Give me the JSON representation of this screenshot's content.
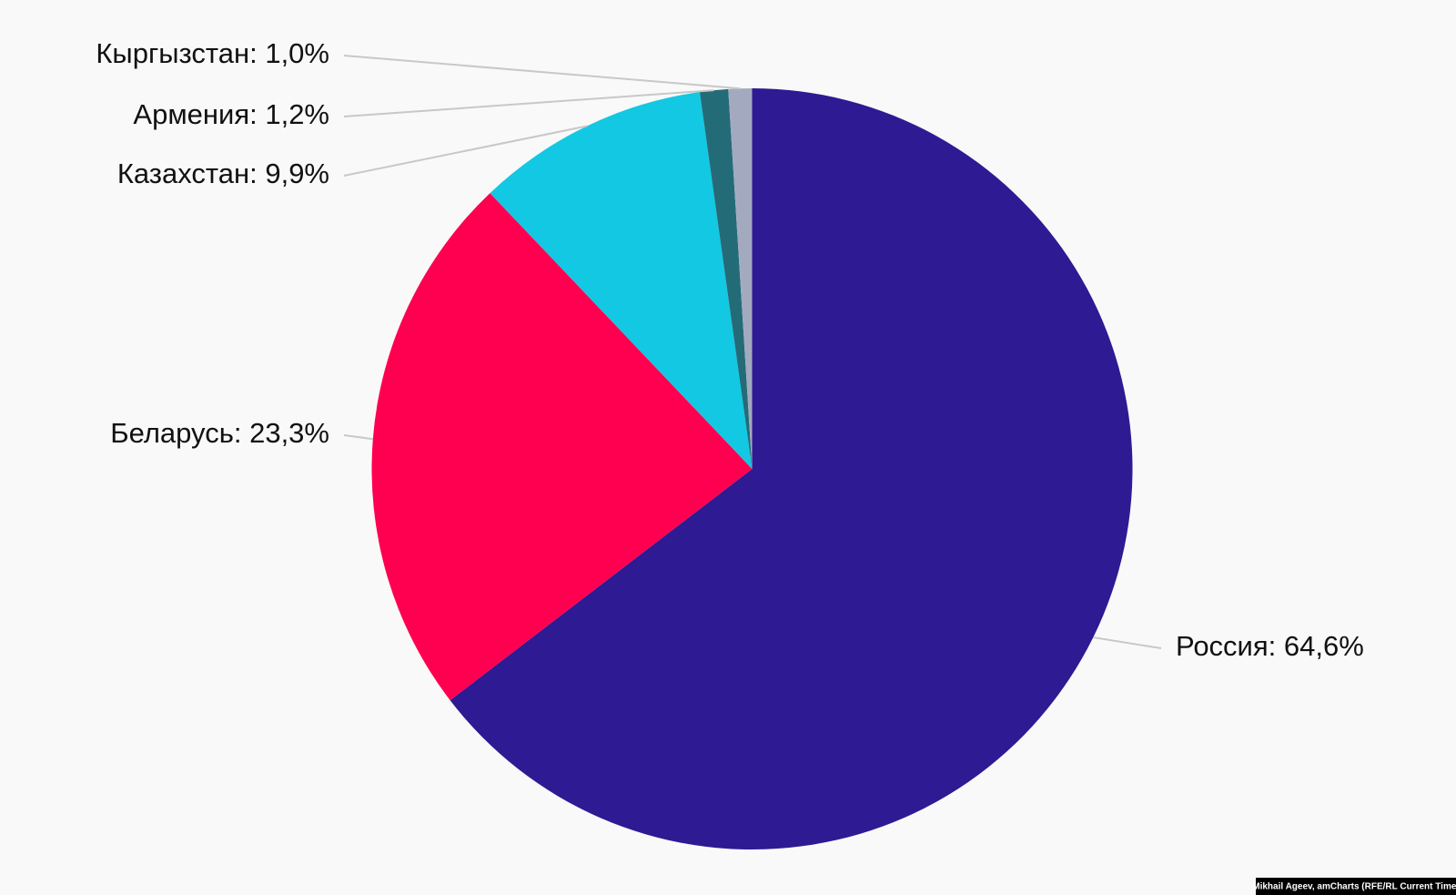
{
  "chart_data": {
    "type": "pie",
    "values": [
      64.6,
      23.3,
      9.9,
      1.2,
      1.0
    ],
    "value_labels": [
      "Россия: 64,6%",
      "Беларусь: 23,3%",
      "Казахстан: 9,9%",
      "Армения: 1,2%",
      "Кыргызстан: 1,0%"
    ],
    "colors": [
      "#2e1a93",
      "#ff0050",
      "#13c8e2",
      "#246b78",
      "#a3aac0"
    ],
    "source": "Mikhail Ageev, amCharts (RFE/RL Current Time)"
  }
}
